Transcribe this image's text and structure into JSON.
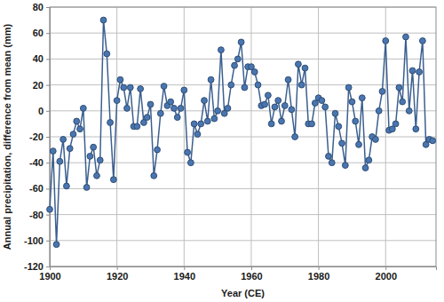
{
  "chart_data": {
    "type": "line",
    "x_label": "Year (CE)",
    "y_label": "Annual precipitation, difference from mean (mm)",
    "x": [
      1900,
      1901,
      1902,
      1903,
      1904,
      1905,
      1906,
      1907,
      1908,
      1909,
      1910,
      1911,
      1912,
      1913,
      1914,
      1915,
      1916,
      1917,
      1918,
      1919,
      1920,
      1921,
      1922,
      1923,
      1924,
      1925,
      1926,
      1927,
      1928,
      1929,
      1930,
      1931,
      1932,
      1933,
      1934,
      1935,
      1936,
      1937,
      1938,
      1939,
      1940,
      1941,
      1942,
      1943,
      1944,
      1945,
      1946,
      1947,
      1948,
      1949,
      1950,
      1951,
      1952,
      1953,
      1954,
      1955,
      1956,
      1957,
      1958,
      1959,
      1960,
      1961,
      1962,
      1963,
      1964,
      1965,
      1966,
      1967,
      1968,
      1969,
      1970,
      1971,
      1972,
      1973,
      1974,
      1975,
      1976,
      1977,
      1978,
      1979,
      1980,
      1981,
      1982,
      1983,
      1984,
      1985,
      1986,
      1987,
      1988,
      1989,
      1990,
      1991,
      1992,
      1993,
      1994,
      1995,
      1996,
      1997,
      1998,
      1999,
      2000,
      2001,
      2002,
      2003,
      2004,
      2005,
      2006,
      2007,
      2008,
      2009,
      2010,
      2011,
      2012,
      2013,
      2014
    ],
    "values": [
      -76,
      -31,
      -103,
      -39,
      -22,
      -58,
      -29,
      -18,
      -8,
      -14,
      2,
      -59,
      -35,
      -28,
      -50,
      -38,
      70,
      44,
      -9,
      -53,
      8,
      24,
      18,
      2,
      18,
      -12,
      -12,
      17,
      -9,
      -5,
      5,
      -50,
      -30,
      -2,
      19,
      4,
      7,
      2,
      -5,
      2,
      16,
      -32,
      -40,
      -10,
      -18,
      -10,
      8,
      -8,
      24,
      -6,
      0,
      47,
      -2,
      2,
      20,
      35,
      40,
      53,
      18,
      34,
      34,
      30,
      20,
      4,
      5,
      12,
      -10,
      3,
      8,
      -8,
      4,
      24,
      1,
      -20,
      36,
      20,
      33,
      -10,
      -10,
      6,
      10,
      8,
      3,
      -35,
      -40,
      -2,
      -12,
      -25,
      -42,
      18,
      7,
      -8,
      -26,
      10,
      -44,
      -38,
      -20,
      -22,
      0,
      15,
      54,
      -15,
      -14,
      -10,
      18,
      7,
      57,
      0,
      31,
      -14,
      30,
      54,
      -26,
      -22,
      -23
    ],
    "color": "#3b5f8f",
    "marker": "circle",
    "xlim": [
      1900,
      2015
    ],
    "xticks": [
      1900,
      1920,
      1940,
      1960,
      1980,
      2000
    ],
    "ylim": [
      -120,
      80
    ],
    "yticks": [
      -120,
      -100,
      -80,
      -60,
      -40,
      -20,
      0,
      20,
      40,
      60,
      80
    ],
    "grid": true
  }
}
